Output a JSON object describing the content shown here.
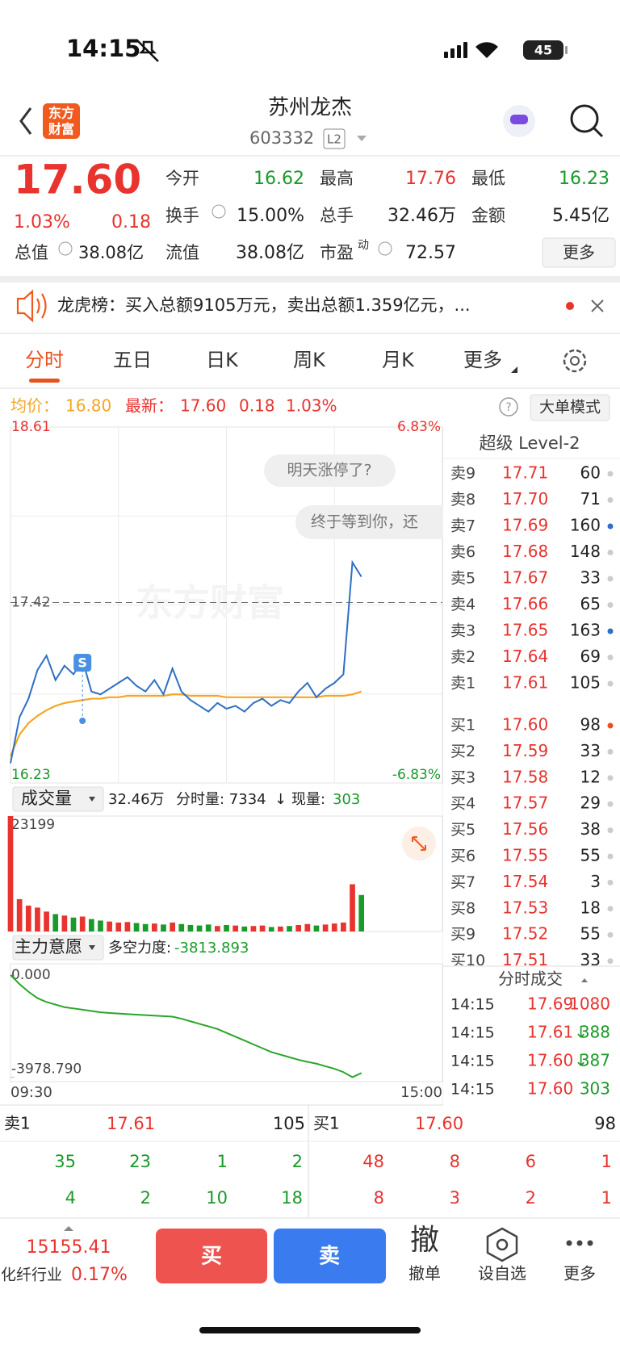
{
  "status": {
    "time": "14:15",
    "battery": "45"
  },
  "header": {
    "logo": [
      "东方",
      "财富"
    ],
    "title": "苏州龙杰",
    "code": "603332",
    "badge": "L2"
  },
  "quote": {
    "price": "17.60",
    "change_pct": "1.03%",
    "change": "0.18",
    "fields": [
      {
        "label": "今开",
        "value": "16.62",
        "color": "#1a9a2a"
      },
      {
        "label": "最高",
        "value": "17.76",
        "color": "#e8332f"
      },
      {
        "label": "最低",
        "value": "16.23",
        "color": "#1a9a2a"
      },
      {
        "label": "换手",
        "value": "15.00%",
        "color": "#222222"
      },
      {
        "label": "总手",
        "value": "32.46万",
        "color": "#222222"
      },
      {
        "label": "金额",
        "value": "5.45亿",
        "color": "#222222"
      },
      {
        "label": "总值",
        "value": "38.08亿",
        "color": "#222222"
      },
      {
        "label": "流值",
        "value": "38.08亿",
        "color": "#222222"
      },
      {
        "label": "市盈",
        "value": "72.57",
        "color": "#222222"
      }
    ],
    "pe_sup": "动",
    "more": "更多"
  },
  "notice": "龙虎榜：买入总额9105万元，卖出总额1.359亿元，...",
  "tabs": [
    "分时",
    "五日",
    "日K",
    "周K",
    "月K",
    "更多"
  ],
  "info": {
    "avg_label": "均价：",
    "avg": "16.80",
    "latest_label": "最新：",
    "latest": "17.60",
    "change": "0.18",
    "pct": "1.03%",
    "mode": "大单模式"
  },
  "bubbles": [
    "明天涨停了?",
    "终于等到你，还"
  ],
  "watermark": "东方财富",
  "chart_data": [
    {
      "type": "line",
      "ylim": [
        16.23,
        18.61
      ],
      "yticks": [
        16.23,
        17.42,
        18.61
      ],
      "right_labels": [
        "-6.83%",
        "6.83%"
      ],
      "marker": "S",
      "series": [
        {
          "color": "#2f6fc4",
          "values": [
            16.3,
            16.62,
            16.75,
            16.95,
            17.05,
            16.88,
            16.98,
            16.92,
            17.02,
            16.8,
            16.78,
            16.82,
            16.86,
            16.9,
            16.84,
            16.8,
            16.88,
            16.78,
            16.96,
            16.8,
            16.74,
            16.7,
            16.66,
            16.72,
            16.68,
            16.7,
            16.66,
            16.72,
            16.75,
            16.7,
            16.74,
            16.72,
            16.8,
            16.86,
            16.76,
            16.82,
            16.86,
            16.92,
            17.7,
            17.6
          ]
        },
        {
          "color": "#f5a623",
          "values": [
            16.35,
            16.5,
            16.58,
            16.63,
            16.67,
            16.7,
            16.72,
            16.73,
            16.74,
            16.75,
            16.75,
            16.76,
            16.76,
            16.77,
            16.77,
            16.77,
            16.77,
            16.77,
            16.78,
            16.78,
            16.77,
            16.77,
            16.77,
            16.77,
            16.76,
            16.76,
            16.76,
            16.76,
            16.76,
            16.76,
            16.76,
            16.76,
            16.76,
            16.76,
            16.76,
            16.77,
            16.77,
            16.77,
            16.78,
            16.8
          ]
        }
      ]
    },
    {
      "type": "bar",
      "ylim": [
        0,
        23199
      ],
      "yticks": [
        23199
      ],
      "up_color": "#e8332f",
      "down_color": "#1a9a2a",
      "selector": "成交量",
      "total": "32.46万",
      "minute_label": "分时量: 7334",
      "arrow": "↓",
      "now_label": "现量:",
      "now": "303",
      "values": [
        23199,
        6500,
        5200,
        4800,
        4000,
        3500,
        3200,
        2800,
        3000,
        2500,
        2200,
        2000,
        1800,
        1900,
        1700,
        1500,
        1600,
        1400,
        1800,
        1500,
        1300,
        1200,
        1400,
        1100,
        1300,
        1200,
        1000,
        1100,
        1200,
        900,
        1000,
        1100,
        1300,
        1500,
        1200,
        1400,
        1600,
        1800,
        9500,
        7334
      ]
    },
    {
      "type": "line",
      "ylim": [
        -4150,
        250
      ],
      "yticks": [
        {
          "value": 0,
          "label": "0.000"
        },
        {
          "value": -3978.79,
          "label": "-3978.790"
        }
      ],
      "xticks": [
        "09:30",
        "15:00"
      ],
      "selector": "主力意愿",
      "force_label": "多空力度:",
      "force": "-3813.893",
      "color": "#2aa52a",
      "values": [
        0,
        -350,
        -650,
        -900,
        -1050,
        -1150,
        -1250,
        -1300,
        -1350,
        -1400,
        -1450,
        -1480,
        -1500,
        -1520,
        -1540,
        -1560,
        -1580,
        -1600,
        -1620,
        -1700,
        -1800,
        -1900,
        -2000,
        -2100,
        -2250,
        -2400,
        -2550,
        -2700,
        -2850,
        -3000,
        -3100,
        -3200,
        -3300,
        -3380,
        -3450,
        -3550,
        -3650,
        -3780,
        -3978.79,
        -3813.893
      ]
    }
  ],
  "orderbook": {
    "title": "超级 Level-2",
    "asks": [
      [
        "卖9",
        "17.71",
        "60"
      ],
      [
        "卖8",
        "17.70",
        "71"
      ],
      [
        "卖7",
        "17.69",
        "160"
      ],
      [
        "卖6",
        "17.68",
        "148"
      ],
      [
        "卖5",
        "17.67",
        "33"
      ],
      [
        "卖4",
        "17.66",
        "65"
      ],
      [
        "卖3",
        "17.65",
        "163"
      ],
      [
        "卖2",
        "17.64",
        "69"
      ],
      [
        "卖1",
        "17.61",
        "105"
      ]
    ],
    "ask_dots": [
      "#cccccc",
      "#cccccc",
      "#2f6fc4",
      "#cccccc",
      "#cccccc",
      "#cccccc",
      "#2f6fc4",
      "#cccccc",
      "#cccccc"
    ],
    "bids": [
      [
        "买1",
        "17.60",
        "98"
      ],
      [
        "买2",
        "17.59",
        "33"
      ],
      [
        "买3",
        "17.58",
        "12"
      ],
      [
        "买4",
        "17.57",
        "29"
      ],
      [
        "买5",
        "17.56",
        "38"
      ],
      [
        "买6",
        "17.55",
        "55"
      ],
      [
        "买7",
        "17.54",
        "3"
      ],
      [
        "买8",
        "17.53",
        "18"
      ],
      [
        "买9",
        "17.52",
        "55"
      ],
      [
        "买10",
        "17.51",
        "33"
      ]
    ],
    "bid_dots": [
      "#e8501e"
    ]
  },
  "trades": {
    "title": "分时成交",
    "rows": [
      {
        "time": "14:15",
        "price": "17.69",
        "volume": "1080"
      },
      {
        "time": "14:15",
        "price": "17.61",
        "arrow": "↓",
        "volume": "388"
      },
      {
        "time": "14:15",
        "price": "17.60",
        "arrow": "↓",
        "volume": "387"
      },
      {
        "time": "14:15",
        "price": "17.60",
        "volume": "303"
      }
    ]
  },
  "summary": {
    "ask": [
      "卖1",
      "17.61",
      "105"
    ],
    "bid": [
      "买1",
      "17.60",
      "98"
    ],
    "rows": [
      [
        "35",
        "23",
        "1",
        "2",
        "48",
        "8",
        "6",
        "1"
      ],
      [
        "4",
        "2",
        "10",
        "18",
        "8",
        "3",
        "2",
        "1"
      ]
    ]
  },
  "bottom": {
    "index": "15155.41",
    "sector": "化纤行业",
    "sector_pct": "0.17%",
    "buy": "买",
    "sell": "卖",
    "cancel_icon": "撤",
    "cancel": "撤单",
    "watch": "设自选",
    "more": "更多"
  }
}
